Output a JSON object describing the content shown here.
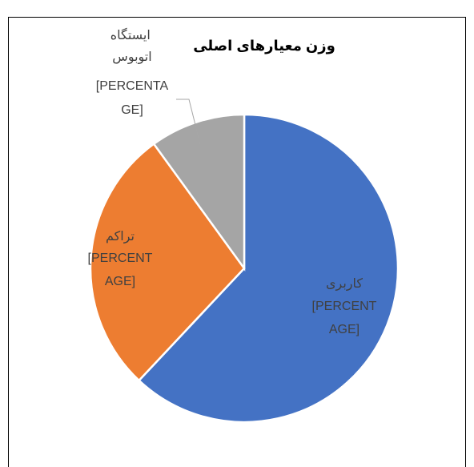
{
  "chart_data": {
    "type": "pie",
    "title": "وزن معیارهای اصلی",
    "categories": [
      "کاربری",
      "تراکم",
      "ایستگاه اتوبوس"
    ],
    "values": [
      62,
      28,
      10
    ],
    "data_label_texts": [
      "[PERCENTAGE]",
      "[PERCENTAGE]",
      "[PERCENTAGE]"
    ],
    "colors": [
      "#4472c4",
      "#ed7d31",
      "#a5a5a5"
    ]
  }
}
